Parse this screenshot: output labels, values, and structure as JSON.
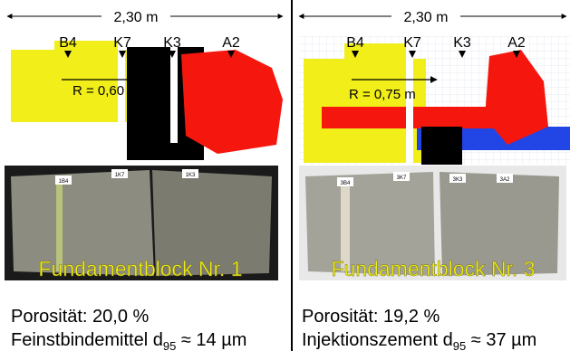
{
  "panels": [
    {
      "width_label": "2,30 m",
      "boreholes": [
        "B4",
        "K7",
        "K3",
        "A2"
      ],
      "radius": "R = 0,60 m",
      "sample_labels": [
        "1B4",
        "1K7",
        "1K3"
      ],
      "photo_caption": "Fundamentblock Nr. 1",
      "porosity": "Porosität: 20,0 %",
      "binder": {
        "text": "Feinstbindemittel d",
        "subscript": "95",
        "suffix": " ≈ 14 µm"
      }
    },
    {
      "width_label": "2,30 m",
      "boreholes": [
        "B4",
        "K7",
        "K3",
        "A2"
      ],
      "radius": "R = 0,75 m",
      "sample_labels": [
        "3B4",
        "3K7",
        "3K3",
        "3A2"
      ],
      "photo_caption": "Fundamentblock Nr. 3",
      "porosity": "Porosität: 19,2 %",
      "binder": {
        "text": "Injektionszement d",
        "subscript": "95",
        "suffix": " ≈ 37 µm"
      }
    }
  ]
}
